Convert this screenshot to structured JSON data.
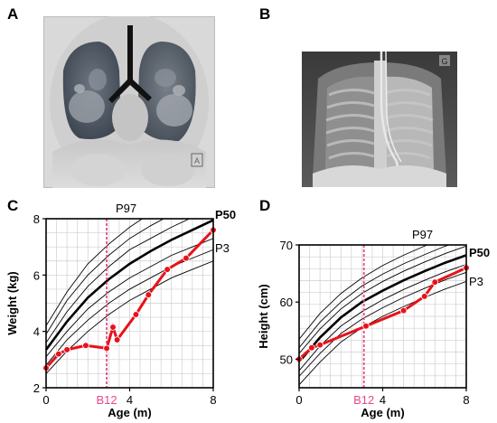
{
  "panel_labels": {
    "a": "A",
    "b": "B",
    "c": "C",
    "d": "D"
  },
  "image_a": {
    "kind": "coronal CT lung window",
    "marker": "A"
  },
  "image_b": {
    "kind": "frontal chest radiograph",
    "marker": "G"
  },
  "chart_data": [
    {
      "type": "line",
      "panel": "C",
      "xlabel": "Age (m)",
      "ylabel": "Weight (kg)",
      "xlim": [
        0,
        8
      ],
      "ylim": [
        2,
        8
      ],
      "x_ticks": [
        "0",
        "4",
        "8"
      ],
      "y_ticks": [
        "2",
        "4",
        "6",
        "8"
      ],
      "marker_label": "B12",
      "marker_x": 2.9,
      "curve_labels": {
        "top": "P97",
        "median": "P50",
        "bottom": "P3"
      },
      "grid": true,
      "percentile_x": [
        0,
        1,
        2,
        3,
        4,
        5,
        6,
        7,
        8
      ],
      "percentiles": [
        {
          "values": [
            2.5,
            3.3,
            4.0,
            4.6,
            5.1,
            5.5,
            5.9,
            6.2,
            6.5
          ]
        },
        {
          "values": [
            2.8,
            3.7,
            4.4,
            5.0,
            5.5,
            5.9,
            6.3,
            6.6,
            6.9
          ]
        },
        {
          "values": [
            3.1,
            4.0,
            4.8,
            5.4,
            5.9,
            6.3,
            6.7,
            7.0,
            7.3
          ]
        },
        {
          "values": [
            3.35,
            4.35,
            5.2,
            5.85,
            6.4,
            6.85,
            7.25,
            7.6,
            7.95
          ],
          "median": true
        },
        {
          "values": [
            3.6,
            4.7,
            5.6,
            6.3,
            6.9,
            7.3,
            7.7,
            8.05,
            8.35
          ]
        },
        {
          "values": [
            3.9,
            5.1,
            6.0,
            6.7,
            7.3,
            7.75,
            8.15,
            8.5,
            8.8
          ]
        },
        {
          "values": [
            4.2,
            5.4,
            6.4,
            7.1,
            7.7,
            8.2,
            8.6,
            8.95,
            9.3
          ]
        }
      ],
      "series": [
        {
          "x": [
            0,
            0.6,
            1.0,
            1.9,
            2.9,
            3.2,
            3.4,
            4.3,
            4.9,
            5.8,
            6.7,
            8.0
          ],
          "y": [
            2.7,
            3.2,
            3.35,
            3.5,
            3.4,
            4.15,
            3.7,
            4.6,
            5.3,
            6.2,
            6.6,
            7.6
          ]
        }
      ]
    },
    {
      "type": "line",
      "panel": "D",
      "xlabel": "Age (m)",
      "ylabel": "Height (cm)",
      "xlim": [
        0,
        8
      ],
      "ylim": [
        45,
        70
      ],
      "x_ticks": [
        "0",
        "4",
        "8"
      ],
      "y_ticks": [
        "50",
        "60",
        "70"
      ],
      "marker_label": "B12",
      "marker_x": 3.1,
      "curve_labels": {
        "top": "P97",
        "median": "P50",
        "bottom": "P3"
      },
      "grid": true,
      "percentile_x": [
        0,
        1,
        2,
        3,
        4,
        5,
        6,
        7,
        8
      ],
      "percentiles": [
        {
          "values": [
            45.5,
            49.5,
            53.0,
            55.5,
            57.5,
            59.2,
            60.8,
            62.3,
            63.6
          ]
        },
        {
          "values": [
            47.0,
            51.0,
            54.5,
            57.0,
            59.0,
            60.8,
            62.4,
            63.9,
            65.2
          ]
        },
        {
          "values": [
            48.0,
            52.3,
            55.8,
            58.3,
            60.4,
            62.2,
            63.8,
            65.3,
            66.6
          ]
        },
        {
          "values": [
            49.5,
            53.8,
            57.3,
            60.0,
            62.0,
            63.8,
            65.4,
            66.9,
            68.2
          ],
          "median": true
        },
        {
          "values": [
            51.0,
            55.3,
            58.8,
            61.5,
            63.6,
            65.4,
            67.0,
            68.5,
            69.8
          ]
        },
        {
          "values": [
            52.0,
            56.5,
            60.0,
            62.8,
            64.9,
            66.7,
            68.3,
            69.8,
            71.1
          ]
        },
        {
          "values": [
            53.5,
            58.0,
            61.5,
            64.2,
            66.4,
            68.2,
            69.8,
            71.3,
            72.6
          ]
        }
      ],
      "series": [
        {
          "x": [
            0,
            0.6,
            1.0,
            3.2,
            5.0,
            6.0,
            6.5,
            8.0
          ],
          "y": [
            50.0,
            52.0,
            52.5,
            55.8,
            58.5,
            61.0,
            63.5,
            66.0
          ]
        }
      ]
    }
  ]
}
